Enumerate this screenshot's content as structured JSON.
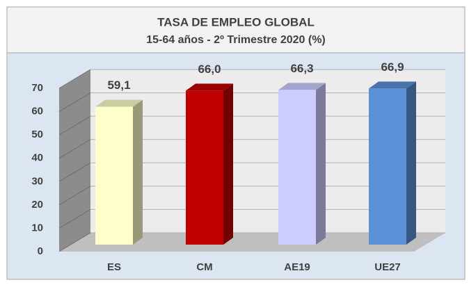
{
  "chart_data": {
    "type": "bar3d",
    "title": "TASA DE EMPLEO GLOBAL",
    "subtitle": "15-64 años - 2º Trimestre 2020 (%)",
    "categories": [
      "ES",
      "CM",
      "AE19",
      "UE27"
    ],
    "values": [
      59.1,
      66.0,
      66.3,
      66.9
    ],
    "value_labels": [
      "59,1",
      "66,0",
      "66,3",
      "66,9"
    ],
    "colors": [
      "#ffffcc",
      "#c00000",
      "#ccccff",
      "#5b8fd6"
    ],
    "ylim": [
      0,
      70
    ],
    "yticks": [
      0,
      10,
      20,
      30,
      40,
      50,
      60,
      70
    ],
    "grid": true
  }
}
